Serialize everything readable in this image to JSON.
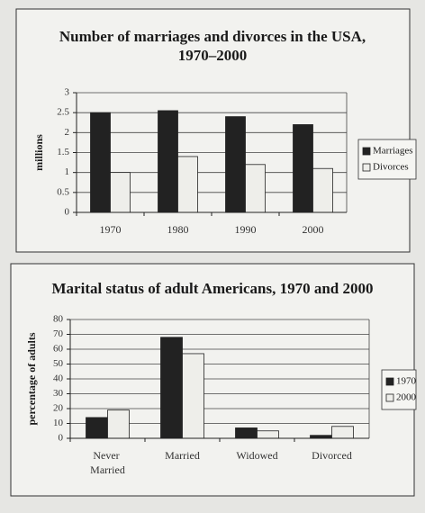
{
  "chart_data": [
    {
      "type": "bar",
      "title": [
        "Number of marriages and divorces in the USA,",
        "1970–2000"
      ],
      "ylabel": "millions",
      "categories": [
        "1970",
        "1980",
        "1990",
        "2000"
      ],
      "series": [
        {
          "name": "Marriages",
          "color": "#222222",
          "values": [
            2.5,
            2.55,
            2.4,
            2.2
          ]
        },
        {
          "name": "Divorces",
          "color": "#eeeeea",
          "values": [
            1.0,
            1.4,
            1.2,
            1.1
          ]
        }
      ],
      "ylim": [
        0,
        3
      ],
      "yticks": [
        0,
        0.5,
        1,
        1.5,
        2,
        2.5,
        3
      ],
      "grid": true,
      "legend": "right"
    },
    {
      "type": "bar",
      "title": [
        "Marital status of adult Americans, 1970 and 2000"
      ],
      "ylabel": "percentage of adults",
      "categories": [
        "Never Married",
        "Married",
        "Widowed",
        "Divorced"
      ],
      "series": [
        {
          "name": "1970",
          "color": "#222222",
          "values": [
            14,
            68,
            7,
            2
          ]
        },
        {
          "name": "2000",
          "color": "#eeeeea",
          "values": [
            19,
            57,
            5,
            8
          ]
        }
      ],
      "ylim": [
        0,
        80
      ],
      "yticks": [
        0,
        10,
        20,
        30,
        40,
        50,
        60,
        70,
        80
      ],
      "grid": true,
      "legend": "right"
    }
  ]
}
